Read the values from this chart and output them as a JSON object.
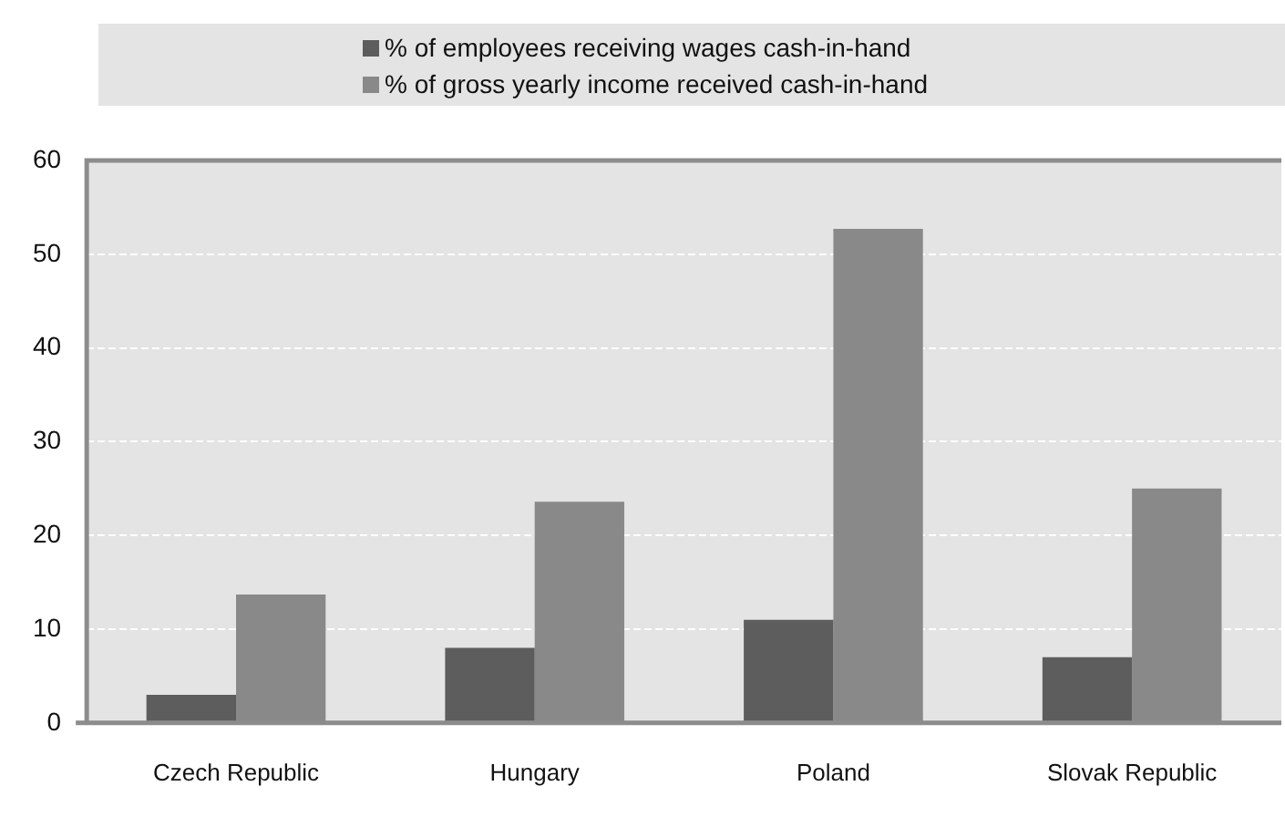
{
  "chart_data": {
    "type": "bar",
    "categories": [
      "Czech Republic",
      "Hungary",
      "Poland",
      "Slovak Republic"
    ],
    "series": [
      {
        "name": "% of employees receiving wages cash-in-hand",
        "color": "#5d5d5d",
        "values": [
          3,
          8,
          11,
          7
        ]
      },
      {
        "name": "% of gross yearly income received cash-in-hand",
        "color": "#898989",
        "values": [
          13.7,
          23.6,
          52.7,
          25
        ]
      }
    ],
    "ylim": [
      0,
      60
    ],
    "yticks": [
      0,
      10,
      20,
      30,
      40,
      50,
      60
    ],
    "grid": "y",
    "legend": "top"
  }
}
